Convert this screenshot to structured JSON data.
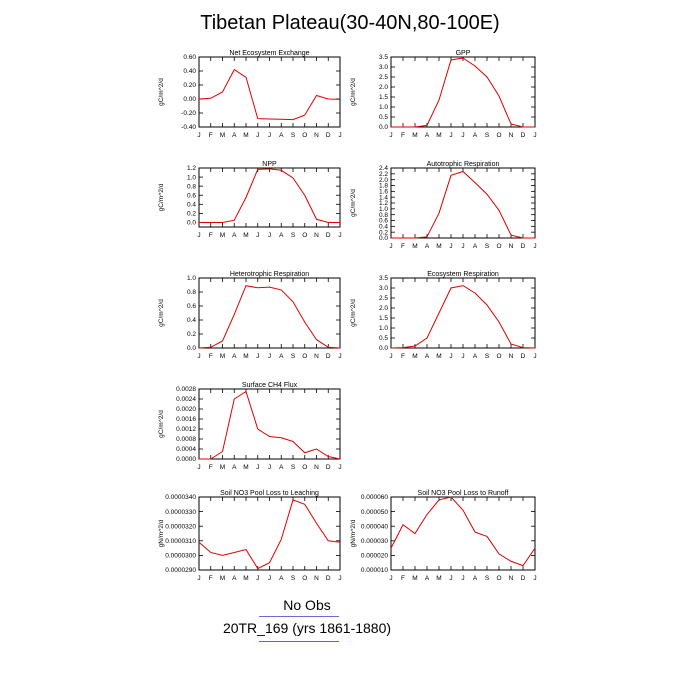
{
  "page_title": "Tibetan Plateau(30-40N,80-100E)",
  "legend": {
    "entries": [
      {
        "label": "No Obs",
        "color": "#6b6bd6"
      },
      {
        "label": "20TR_169 (yrs 1861-1880)",
        "color": "#e53b3b"
      }
    ]
  },
  "colors": {
    "series": "#e00000",
    "axis": "#000000"
  },
  "chart_data": [
    {
      "type": "line",
      "title": "Net Ecosystem Exchange",
      "ylabel": "gC/m^2/d",
      "categories": [
        "J",
        "F",
        "M",
        "A",
        "M",
        "J",
        "J",
        "A",
        "S",
        "O",
        "N",
        "D",
        "J"
      ],
      "ylim": [
        -0.4,
        0.6
      ],
      "yticks": [
        "-0.40",
        "-0.20",
        "0.00",
        "0.20",
        "0.40",
        "0.60"
      ],
      "series": [
        {
          "values": [
            0.0,
            0.01,
            0.1,
            0.42,
            0.31,
            -0.28,
            -0.285,
            -0.29,
            -0.295,
            -0.23,
            0.05,
            0.0,
            -0.005
          ]
        }
      ]
    },
    {
      "type": "line",
      "title": "GPP",
      "ylabel": "gC/m^2/d",
      "categories": [
        "J",
        "F",
        "M",
        "A",
        "M",
        "J",
        "J",
        "A",
        "S",
        "O",
        "N",
        "D",
        "J"
      ],
      "ylim": [
        0.0,
        3.5
      ],
      "yticks": [
        "0.0",
        "0.5",
        "1.0",
        "1.5",
        "2.0",
        "2.5",
        "3.0",
        "3.5"
      ],
      "series": [
        {
          "values": [
            0.0,
            0.0,
            0.0,
            0.08,
            1.35,
            3.35,
            3.45,
            3.05,
            2.5,
            1.55,
            0.15,
            0.0,
            0.0
          ]
        }
      ]
    },
    {
      "type": "line",
      "title": "NPP",
      "ylabel": "gC/m^2/d",
      "categories": [
        "J",
        "F",
        "M",
        "A",
        "M",
        "J",
        "J",
        "A",
        "S",
        "O",
        "N",
        "D",
        "J"
      ],
      "ylim": [
        -0.1,
        1.2
      ],
      "yticks": [
        "0.0",
        "0.2",
        "0.4",
        "0.6",
        "0.8",
        "1.0",
        "1.2"
      ],
      "series": [
        {
          "values": [
            0.0,
            0.0,
            0.0,
            0.05,
            0.55,
            1.17,
            1.18,
            1.15,
            0.98,
            0.6,
            0.07,
            0.0,
            0.0
          ]
        }
      ]
    },
    {
      "type": "line",
      "title": "Autotrophic Respiration",
      "ylabel": "gC/m^2/d",
      "categories": [
        "J",
        "F",
        "M",
        "A",
        "M",
        "J",
        "J",
        "A",
        "S",
        "O",
        "N",
        "D",
        "J"
      ],
      "ylim": [
        0.0,
        2.4
      ],
      "yticks": [
        "0.0",
        "0.2",
        "0.4",
        "0.6",
        "0.8",
        "1.0",
        "1.2",
        "1.4",
        "1.6",
        "1.8",
        "2.0",
        "2.2",
        "2.4"
      ],
      "series": [
        {
          "values": [
            0.0,
            0.0,
            0.0,
            0.04,
            0.85,
            2.15,
            2.28,
            1.9,
            1.5,
            0.95,
            0.1,
            0.0,
            0.0
          ]
        }
      ]
    },
    {
      "type": "line",
      "title": "Heterotrophic Respiration",
      "ylabel": "gC/m^2/d",
      "categories": [
        "J",
        "F",
        "M",
        "A",
        "M",
        "J",
        "J",
        "A",
        "S",
        "O",
        "N",
        "D",
        "J"
      ],
      "ylim": [
        0.0,
        1.0
      ],
      "yticks": [
        "0.0",
        "0.2",
        "0.4",
        "0.6",
        "0.8",
        "1.0"
      ],
      "series": [
        {
          "values": [
            0.0,
            0.01,
            0.1,
            0.48,
            0.89,
            0.86,
            0.87,
            0.83,
            0.66,
            0.37,
            0.12,
            0.01,
            0.0
          ]
        }
      ]
    },
    {
      "type": "line",
      "title": "Ecosystem Respiration",
      "ylabel": "gC/m^2/d",
      "categories": [
        "J",
        "F",
        "M",
        "A",
        "M",
        "J",
        "J",
        "A",
        "S",
        "O",
        "N",
        "D",
        "J"
      ],
      "ylim": [
        0.0,
        3.5
      ],
      "yticks": [
        "0.0",
        "0.5",
        "1.0",
        "1.5",
        "2.0",
        "2.5",
        "3.0",
        "3.5"
      ],
      "series": [
        {
          "values": [
            0.0,
            0.02,
            0.1,
            0.5,
            1.75,
            3.0,
            3.12,
            2.75,
            2.15,
            1.3,
            0.2,
            0.02,
            0.0
          ]
        }
      ]
    },
    {
      "type": "line",
      "title": "Surface CH4 Flux",
      "ylabel": "gC/m^2/d",
      "categories": [
        "J",
        "F",
        "M",
        "A",
        "M",
        "J",
        "J",
        "A",
        "S",
        "O",
        "N",
        "D",
        "J"
      ],
      "ylim": [
        0.0,
        0.0028
      ],
      "yticks": [
        "0.0000",
        "0.0004",
        "0.0008",
        "0.0012",
        "0.0016",
        "0.0020",
        "0.0024",
        "0.0028"
      ],
      "series": [
        {
          "values": [
            0.0,
            0.0,
            0.0003,
            0.0024,
            0.0027,
            0.0012,
            0.0009,
            0.00085,
            0.0007,
            0.00025,
            0.0004,
            0.0001,
            0.0
          ]
        }
      ]
    },
    {
      "type": "line",
      "title": "Soil NO3 Pool Loss to Leaching",
      "ylabel": "gN/m^2/d",
      "categories": [
        "J",
        "F",
        "M",
        "A",
        "M",
        "J",
        "J",
        "A",
        "S",
        "O",
        "N",
        "D",
        "J"
      ],
      "ylim": [
        2.9e-05,
        3.4e-05
      ],
      "yticks": [
        "0.0000290",
        "0.0000300",
        "0.0000310",
        "0.0000320",
        "0.0000330",
        "0.0000340"
      ],
      "series": [
        {
          "values": [
            3.09e-05,
            3.02e-05,
            3e-05,
            3.02e-05,
            3.04e-05,
            2.91e-05,
            2.95e-05,
            3.11e-05,
            3.38e-05,
            3.35e-05,
            3.22e-05,
            3.1e-05,
            3.09e-05
          ]
        }
      ]
    },
    {
      "type": "line",
      "title": "Soil NO3 Pool Loss to Runoff",
      "ylabel": "gN/m^2/d",
      "categories": [
        "J",
        "F",
        "M",
        "A",
        "M",
        "J",
        "J",
        "A",
        "S",
        "O",
        "N",
        "D",
        "J"
      ],
      "ylim": [
        1e-05,
        6e-05
      ],
      "yticks": [
        "0.000010",
        "0.000020",
        "0.000030",
        "0.000040",
        "0.000050",
        "0.000060"
      ],
      "series": [
        {
          "values": [
            2.5e-05,
            4.1e-05,
            3.5e-05,
            4.8e-05,
            5.8e-05,
            6e-05,
            5.1e-05,
            3.6e-05,
            3.3e-05,
            2.1e-05,
            1.6e-05,
            1.3e-05,
            2.5e-05
          ]
        }
      ]
    }
  ]
}
